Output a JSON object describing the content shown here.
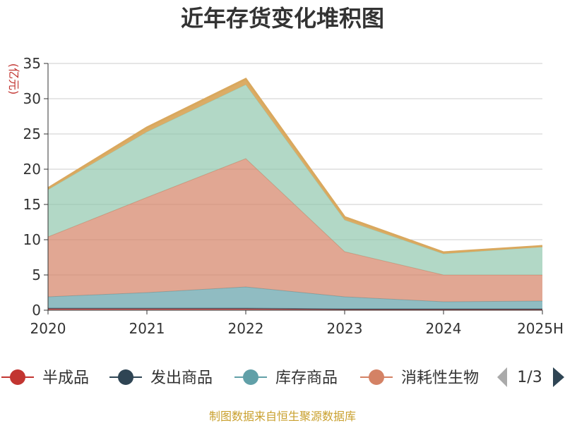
{
  "chart_data": {
    "type": "area",
    "stacked": true,
    "title": "近年存货变化堆积图",
    "ylabel": "(亿元)",
    "xlabel": "",
    "categories": [
      "2020",
      "2021",
      "2022",
      "2023",
      "2024",
      "2025H"
    ],
    "ylim": [
      0,
      35
    ],
    "yticks": [
      0,
      5,
      10,
      15,
      20,
      25,
      30,
      35
    ],
    "grid": true,
    "series": [
      {
        "name": "半成品",
        "color": "#c23531",
        "values": [
          0.2,
          0.2,
          0.2,
          0.1,
          0.1,
          0.1
        ]
      },
      {
        "name": "发出商品",
        "color": "#2f4554",
        "values": [
          0.1,
          0.1,
          0.1,
          0.1,
          0.1,
          0.1
        ]
      },
      {
        "name": "库存商品",
        "color": "#61a0a8",
        "values": [
          1.6,
          2.2,
          3.0,
          1.7,
          1.0,
          1.1
        ]
      },
      {
        "name": "消耗性生物",
        "color": "#d48265",
        "values": [
          8.5,
          13.5,
          18.2,
          6.4,
          3.8,
          3.7
        ]
      },
      {
        "name": "",
        "color": "#91c7ae",
        "values": [
          6.7,
          9.3,
          10.5,
          4.5,
          3.0,
          4.0
        ]
      },
      {
        "name": "",
        "color": "#d9a85e",
        "values": [
          0.2,
          0.6,
          0.8,
          0.4,
          0.2,
          0.1
        ]
      }
    ],
    "legend": {
      "position": "bottom",
      "visible_count": 4,
      "page": "1/3"
    },
    "source": "制图数据来自恒生聚源数据库"
  }
}
